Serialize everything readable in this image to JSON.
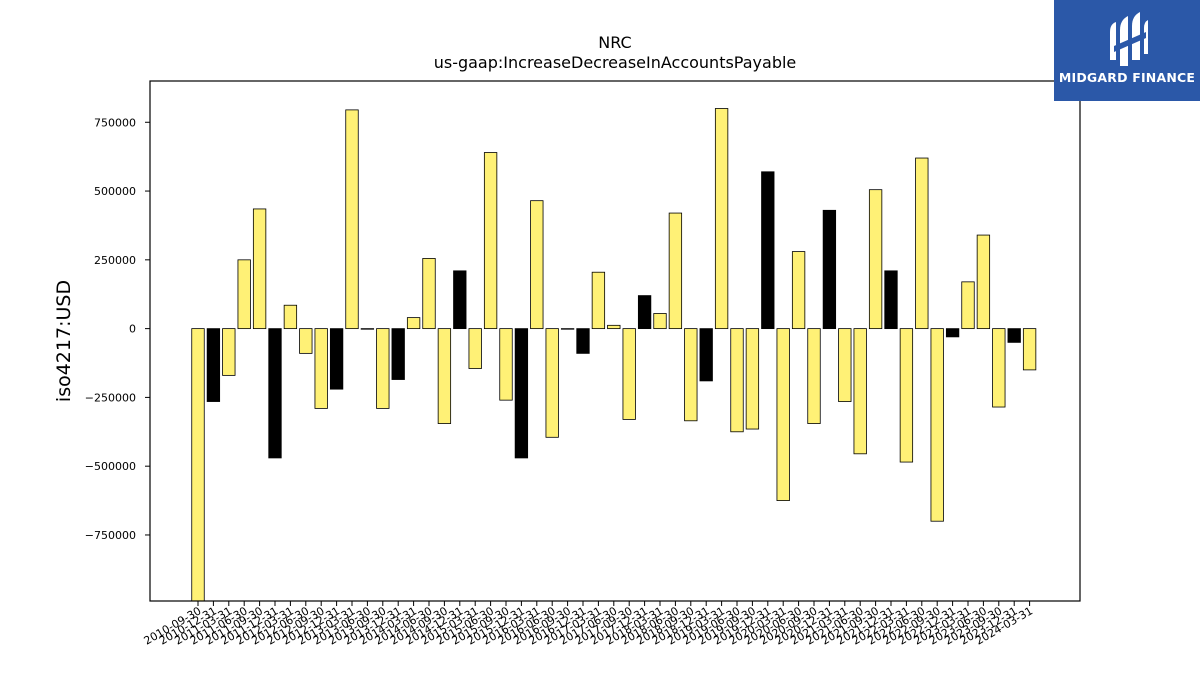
{
  "chart_data": {
    "type": "bar",
    "title": "NRC",
    "subtitle": "us-gaap:IncreaseDecreaseInAccountsPayable",
    "xlabel": "",
    "ylabel": "iso4217:USD",
    "ylim": [
      -990000,
      900000
    ],
    "yticks": [
      -750000,
      -500000,
      -250000,
      0,
      250000,
      500000,
      750000
    ],
    "grid": false,
    "colors": {
      "yellow": "#fff176",
      "black": "#000000",
      "edge": "#000000"
    },
    "categories": [
      "2010-09-30",
      "2010-12-31",
      "2011-03-31",
      "2011-06-30",
      "2011-09-30",
      "2011-12-31",
      "2012-03-31",
      "2012-06-30",
      "2012-09-30",
      "2012-12-31",
      "2013-03-31",
      "2013-06-30",
      "2013-09-30",
      "2013-12-31",
      "2014-03-31",
      "2014-06-30",
      "2014-09-30",
      "2014-12-31",
      "2015-03-31",
      "2015-06-30",
      "2015-09-30",
      "2015-12-31",
      "2016-03-31",
      "2016-06-30",
      "2016-09-30",
      "2016-12-31",
      "2017-03-31",
      "2017-06-30",
      "2017-09-30",
      "2017-12-31",
      "2018-03-31",
      "2018-06-30",
      "2018-09-30",
      "2018-12-31",
      "2019-03-31",
      "2019-06-30",
      "2019-09-30",
      "2019-12-31",
      "2020-03-31",
      "2020-06-30",
      "2020-09-30",
      "2020-12-31",
      "2021-03-31",
      "2021-06-30",
      "2021-09-30",
      "2021-12-31",
      "2022-03-31",
      "2022-06-30",
      "2022-09-30",
      "2022-12-31",
      "2023-03-31",
      "2023-06-30",
      "2023-09-30",
      "2023-12-31",
      "2024-03-31"
    ],
    "values": [
      -990000,
      -265000,
      -170000,
      250000,
      435000,
      -470000,
      85000,
      -90000,
      -290000,
      -220000,
      795000,
      0,
      -290000,
      -185000,
      40000,
      255000,
      -345000,
      210000,
      -145000,
      640000,
      -260000,
      -470000,
      465000,
      -395000,
      0,
      -90000,
      205000,
      12000,
      -330000,
      120000,
      55000,
      420000,
      -335000,
      -190000,
      800000,
      -375000,
      -365000,
      570000,
      -625000,
      280000,
      -345000,
      430000,
      -265000,
      -455000,
      505000,
      210000,
      -485000,
      620000,
      -700000,
      -30000,
      170000,
      340000,
      -285000,
      -50000,
      -150000
    ],
    "bar_colors": [
      "yellow",
      "black",
      "yellow",
      "yellow",
      "yellow",
      "black",
      "yellow",
      "yellow",
      "yellow",
      "black",
      "yellow",
      "black",
      "yellow",
      "black",
      "yellow",
      "yellow",
      "yellow",
      "black",
      "yellow",
      "yellow",
      "yellow",
      "black",
      "yellow",
      "yellow",
      "black",
      "black",
      "yellow",
      "yellow",
      "yellow",
      "black",
      "yellow",
      "yellow",
      "yellow",
      "black",
      "yellow",
      "yellow",
      "yellow",
      "black",
      "yellow",
      "yellow",
      "yellow",
      "black",
      "yellow",
      "yellow",
      "yellow",
      "black",
      "yellow",
      "yellow",
      "yellow",
      "black",
      "yellow",
      "yellow",
      "yellow",
      "black",
      "yellow"
    ]
  },
  "logo": {
    "text": "MIDGARD FINANCE",
    "color": "#2b58a8"
  }
}
